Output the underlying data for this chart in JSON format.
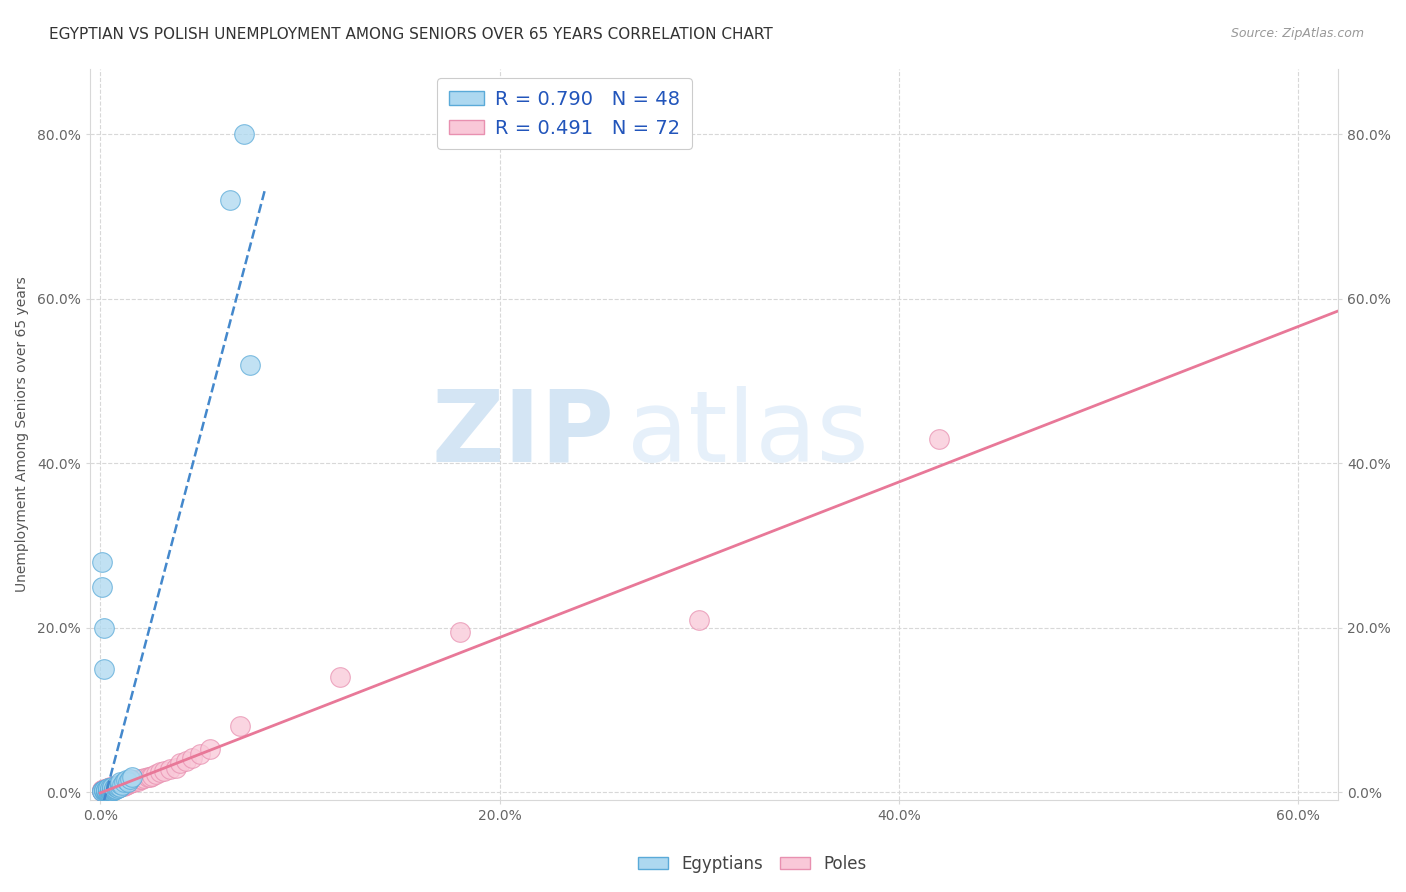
{
  "title": "EGYPTIAN VS POLISH UNEMPLOYMENT AMONG SENIORS OVER 65 YEARS CORRELATION CHART",
  "source": "Source: ZipAtlas.com",
  "ylabel": "Unemployment Among Seniors over 65 years",
  "xlim": [
    -0.005,
    0.62
  ],
  "ylim": [
    -0.01,
    0.88
  ],
  "xtick_vals": [
    0.0,
    0.2,
    0.4,
    0.6
  ],
  "xtick_labels": [
    "0.0%",
    "20.0%",
    "40.0%",
    "60.0%"
  ],
  "ytick_vals": [
    0.0,
    0.2,
    0.4,
    0.6,
    0.8
  ],
  "ytick_labels": [
    "0.0%",
    "20.0%",
    "40.0%",
    "60.0%",
    "80.0%"
  ],
  "egyptians_color": "#add8f0",
  "egyptians_edge_color": "#5aaad8",
  "poles_color": "#f9c8d8",
  "poles_edge_color": "#e890b0",
  "regression_blue_color": "#4488cc",
  "regression_blue_dash": true,
  "regression_pink_color": "#e87898",
  "legend_R1": "R = 0.790",
  "legend_N1": "N = 48",
  "legend_R2": "R = 0.491",
  "legend_N2": "N = 72",
  "watermark_zip": "ZIP",
  "watermark_atlas": "atlas",
  "watermark_color": "#cce0f5",
  "bg_color": "#ffffff",
  "grid_color": "#d8d8d8",
  "scatter_size": 200,
  "egyptians_x": [
    0.001,
    0.001,
    0.002,
    0.002,
    0.002,
    0.003,
    0.003,
    0.003,
    0.003,
    0.004,
    0.004,
    0.004,
    0.004,
    0.004,
    0.005,
    0.005,
    0.005,
    0.005,
    0.005,
    0.006,
    0.006,
    0.006,
    0.006,
    0.006,
    0.007,
    0.007,
    0.007,
    0.008,
    0.008,
    0.008,
    0.009,
    0.009,
    0.01,
    0.01,
    0.01,
    0.011,
    0.012,
    0.013,
    0.014,
    0.015,
    0.016,
    0.001,
    0.001,
    0.002,
    0.002,
    0.065,
    0.072,
    0.075
  ],
  "egyptians_y": [
    0.002,
    0.002,
    0.002,
    0.003,
    0.003,
    0.002,
    0.002,
    0.003,
    0.003,
    0.002,
    0.002,
    0.003,
    0.004,
    0.005,
    0.002,
    0.003,
    0.003,
    0.004,
    0.005,
    0.002,
    0.003,
    0.004,
    0.005,
    0.006,
    0.003,
    0.004,
    0.005,
    0.004,
    0.006,
    0.008,
    0.005,
    0.008,
    0.006,
    0.01,
    0.013,
    0.009,
    0.012,
    0.015,
    0.013,
    0.016,
    0.018,
    0.28,
    0.25,
    0.2,
    0.15,
    0.72,
    0.8,
    0.52
  ],
  "poles_x": [
    0.001,
    0.001,
    0.001,
    0.001,
    0.002,
    0.002,
    0.002,
    0.002,
    0.002,
    0.003,
    0.003,
    0.003,
    0.003,
    0.004,
    0.004,
    0.004,
    0.004,
    0.004,
    0.005,
    0.005,
    0.005,
    0.005,
    0.006,
    0.006,
    0.006,
    0.007,
    0.007,
    0.007,
    0.008,
    0.008,
    0.008,
    0.009,
    0.009,
    0.01,
    0.01,
    0.01,
    0.011,
    0.011,
    0.012,
    0.012,
    0.013,
    0.013,
    0.014,
    0.014,
    0.015,
    0.015,
    0.016,
    0.016,
    0.017,
    0.018,
    0.019,
    0.02,
    0.021,
    0.022,
    0.024,
    0.025,
    0.026,
    0.028,
    0.03,
    0.032,
    0.035,
    0.038,
    0.04,
    0.043,
    0.046,
    0.05,
    0.055,
    0.07,
    0.12,
    0.18,
    0.3,
    0.42
  ],
  "poles_y": [
    0.002,
    0.002,
    0.003,
    0.003,
    0.002,
    0.002,
    0.003,
    0.003,
    0.004,
    0.002,
    0.003,
    0.004,
    0.004,
    0.003,
    0.004,
    0.004,
    0.005,
    0.005,
    0.003,
    0.004,
    0.005,
    0.006,
    0.004,
    0.005,
    0.006,
    0.004,
    0.005,
    0.007,
    0.005,
    0.006,
    0.008,
    0.006,
    0.008,
    0.006,
    0.007,
    0.009,
    0.007,
    0.01,
    0.008,
    0.011,
    0.009,
    0.012,
    0.01,
    0.013,
    0.011,
    0.014,
    0.012,
    0.015,
    0.013,
    0.015,
    0.014,
    0.016,
    0.016,
    0.017,
    0.018,
    0.019,
    0.02,
    0.022,
    0.024,
    0.026,
    0.028,
    0.03,
    0.035,
    0.038,
    0.042,
    0.047,
    0.052,
    0.08,
    0.14,
    0.195,
    0.21,
    0.43
  ],
  "title_fontsize": 11,
  "axis_label_fontsize": 10,
  "tick_fontsize": 10,
  "legend_fontsize": 14
}
